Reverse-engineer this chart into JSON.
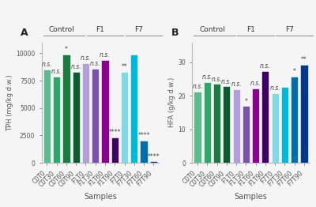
{
  "panel_A": {
    "title": "A",
    "ylabel": "TPH (mg/kg d.w.)",
    "xlabel": "Samples",
    "groups": [
      "Control",
      "F1",
      "F7"
    ],
    "group_centers": [
      1.5,
      5.5,
      9.5
    ],
    "group_ranges": [
      [
        0,
        3.5
      ],
      [
        4.5,
        7.5
      ],
      [
        8.5,
        11.5
      ]
    ],
    "categories": [
      "C0T0",
      "C0T30",
      "C0T60",
      "C0T90",
      "F1T0",
      "F1T30",
      "F1T60",
      "F1T90",
      "F7T0",
      "F7T30",
      "F7T60",
      "F7T90"
    ],
    "values": [
      8500,
      7900,
      9900,
      8300,
      9100,
      8600,
      9400,
      2300,
      8300,
      9900,
      2050,
      120
    ],
    "colors": [
      "#5dbb8e",
      "#2ea86a",
      "#1a7a40",
      "#0d5c30",
      "#b39ddb",
      "#7b52ab",
      "#8b0090",
      "#3d0060",
      "#80d8e8",
      "#00b8d9",
      "#006fa8",
      "#00398a"
    ],
    "annotations": [
      "n.s.",
      "n.s.",
      "*",
      "n.s.",
      "n.s.",
      "n.s.",
      "n.s.",
      "****",
      "**",
      "",
      "****",
      "****"
    ],
    "annot_above": [
      true,
      true,
      true,
      true,
      true,
      true,
      true,
      true,
      true,
      false,
      true,
      true
    ],
    "ylim": [
      0,
      11000
    ],
    "yticks": [
      0,
      2500,
      5000,
      7500,
      10000
    ]
  },
  "panel_B": {
    "title": "B",
    "ylabel": "HFA (g/kg d.w.)",
    "xlabel": "Samples",
    "groups": [
      "Control",
      "F1",
      "F7"
    ],
    "group_centers": [
      1.5,
      5.5,
      9.5
    ],
    "group_ranges": [
      [
        0,
        3.5
      ],
      [
        4.5,
        7.5
      ],
      [
        8.5,
        11.5
      ]
    ],
    "categories": [
      "C0T0",
      "C0T30",
      "C0T60",
      "C0T90",
      "F1T0",
      "F1T30",
      "F1T60",
      "F1T90",
      "F7T0",
      "F7T30",
      "F7T60",
      "F7T90"
    ],
    "values": [
      21.3,
      24.1,
      23.5,
      22.8,
      21.9,
      16.9,
      22.2,
      27.5,
      20.8,
      22.7,
      25.8,
      29.2
    ],
    "colors": [
      "#5dbb8e",
      "#2ea86a",
      "#1a7a40",
      "#0d5c30",
      "#b39ddb",
      "#7b52ab",
      "#8b0090",
      "#3d0060",
      "#80d8e8",
      "#00b8d9",
      "#006fa8",
      "#00398a"
    ],
    "annotations": [
      "n.s.",
      "n.s.",
      "n.s.",
      "n.s.",
      "n.s.",
      "*",
      "n.s.",
      "n.s.",
      "n.s.",
      "",
      "*",
      "**"
    ],
    "annot_above": [
      true,
      true,
      true,
      true,
      true,
      true,
      true,
      true,
      true,
      false,
      true,
      true
    ],
    "ylim": [
      0,
      36
    ],
    "yticks": [
      0,
      10,
      20,
      30
    ]
  },
  "background_color": "#f5f5f5",
  "bar_width": 0.75,
  "fontsize_ylabel": 6,
  "fontsize_xlabel": 7,
  "fontsize_tick": 5.5,
  "fontsize_annot": 5.5,
  "fontsize_group": 6.5,
  "fontsize_title": 9
}
